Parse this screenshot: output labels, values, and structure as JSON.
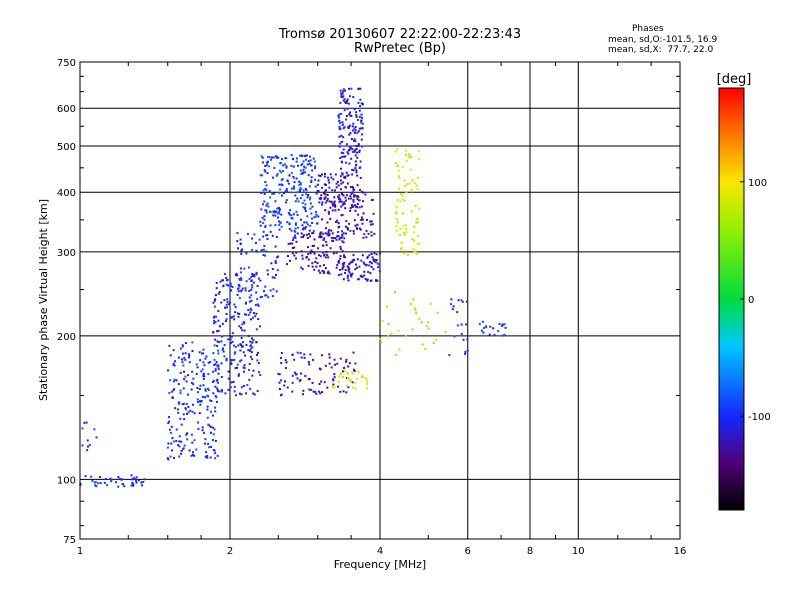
{
  "header": {
    "title_line1": "Tromsø 20130607 22:22:00-22:23:43",
    "title_line2": "RwPretec (Bp)"
  },
  "phases_box": {
    "heading": "Phases",
    "line_o": "mean, sd,O:-101.5, 16.9",
    "line_x": "mean, sd,X:  77.7, 22.0"
  },
  "colorbar": {
    "label": "[deg]",
    "ticks": [
      "100",
      "0",
      "-100"
    ],
    "tick_values": [
      100,
      0,
      -100
    ],
    "range": [
      -180,
      180
    ]
  },
  "chart_data": {
    "type": "scatter",
    "title": "Tromsø 20130607 22:22:00-22:23:43",
    "subtitle": "RwPretec (Bp)",
    "xlabel": "Frequency [MHz]",
    "ylabel": "Stationary phase Virtual Height [km]",
    "x_scale": "log",
    "y_scale": "log",
    "xlim": [
      1,
      16
    ],
    "ylim": [
      75,
      750
    ],
    "x_ticks": [
      1,
      2,
      4,
      6,
      8,
      10,
      16
    ],
    "x_tick_labels": [
      "1",
      "2",
      "4",
      "6",
      "8",
      "10",
      "16"
    ],
    "y_ticks": [
      75,
      100,
      200,
      300,
      400,
      500,
      600,
      750
    ],
    "y_tick_labels": [
      "75",
      "100",
      "200",
      "300",
      "400",
      "500",
      "600",
      "750"
    ],
    "grid": true,
    "color_by": "phase [deg]",
    "clusters": [
      {
        "x": [
          1.0,
          1.35
        ],
        "y": [
          96,
          102
        ],
        "phase": -100,
        "n": 45
      },
      {
        "x": [
          1.0,
          1.1
        ],
        "y": [
          115,
          140
        ],
        "phase": -100,
        "n": 10
      },
      {
        "x": [
          1.5,
          1.9
        ],
        "y": [
          110,
          195
        ],
        "phase": -100,
        "n": 220
      },
      {
        "x": [
          1.85,
          2.3
        ],
        "y": [
          150,
          270
        ],
        "phase": -105,
        "n": 230
      },
      {
        "x": [
          2.05,
          2.5
        ],
        "y": [
          240,
          330
        ],
        "phase": -100,
        "n": 80
      },
      {
        "x": [
          2.3,
          3.0
        ],
        "y": [
          330,
          480
        ],
        "phase": -95,
        "n": 250
      },
      {
        "x": [
          2.6,
          3.4
        ],
        "y": [
          270,
          330
        ],
        "phase": -120,
        "n": 120
      },
      {
        "x": [
          3.0,
          3.7
        ],
        "y": [
          370,
          440
        ],
        "phase": -120,
        "n": 110
      },
      {
        "x": [
          3.3,
          3.7
        ],
        "y": [
          440,
          660
        ],
        "phase": -110,
        "n": 150
      },
      {
        "x": [
          3.0,
          3.9
        ],
        "y": [
          320,
          400
        ],
        "phase": -125,
        "n": 100
      },
      {
        "x": [
          3.3,
          4.0
        ],
        "y": [
          260,
          300
        ],
        "phase": -120,
        "n": 90
      },
      {
        "x": [
          2.5,
          3.6
        ],
        "y": [
          150,
          185
        ],
        "phase": -120,
        "n": 90
      },
      {
        "x": [
          3.2,
          3.8
        ],
        "y": [
          155,
          170
        ],
        "phase": 80,
        "n": 30
      },
      {
        "x": [
          4.3,
          4.8
        ],
        "y": [
          290,
          500
        ],
        "phase": 80,
        "n": 80
      },
      {
        "x": [
          5.5,
          6.1
        ],
        "y": [
          180,
          240
        ],
        "phase": -100,
        "n": 20
      },
      {
        "x": [
          6.3,
          7.2
        ],
        "y": [
          200,
          215
        ],
        "phase": -100,
        "n": 20
      },
      {
        "x": [
          4.0,
          5.5
        ],
        "y": [
          180,
          250
        ],
        "phase": 60,
        "n": 30
      }
    ]
  }
}
